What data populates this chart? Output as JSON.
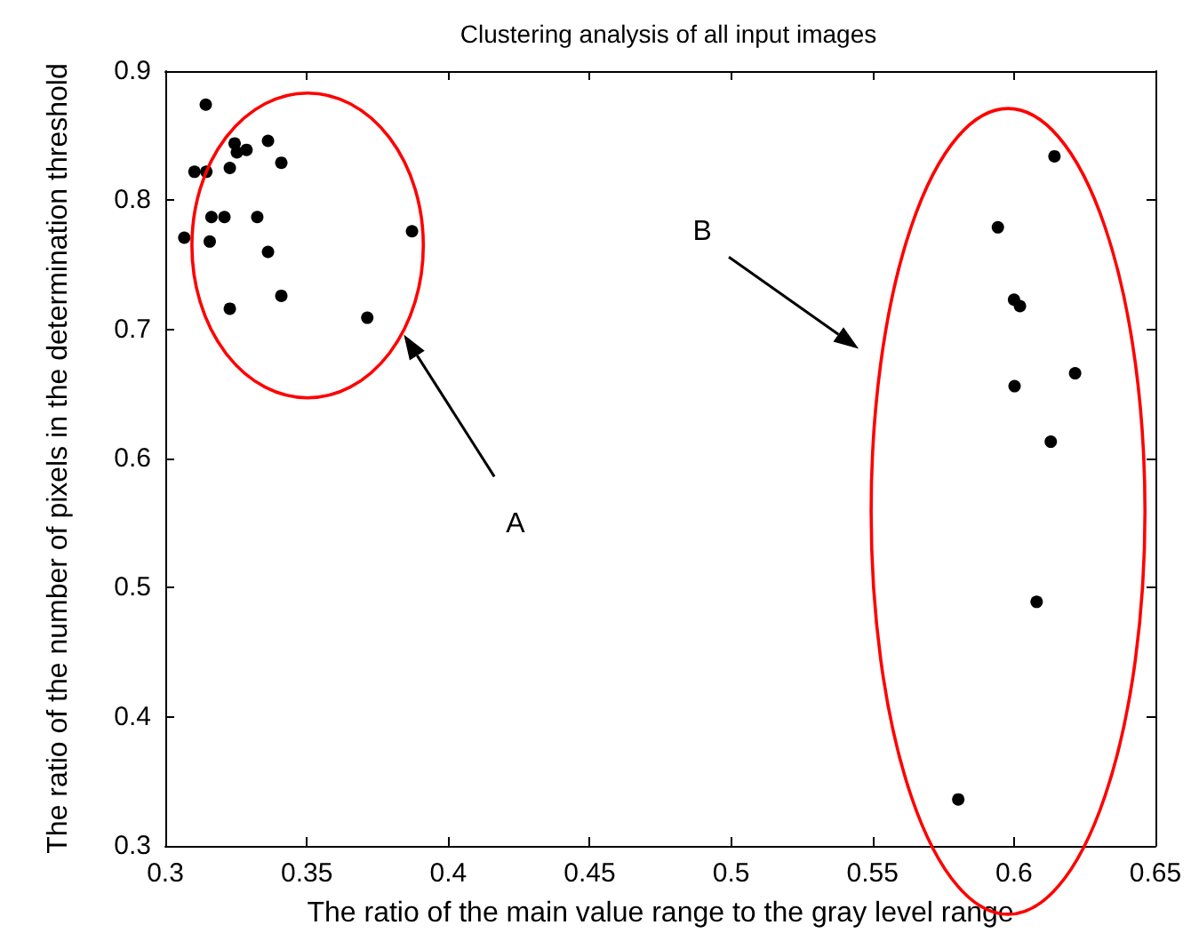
{
  "chart_data": {
    "type": "scatter",
    "title": "Clustering analysis of all input images",
    "xlabel": "The ratio of the main value range to the gray level range",
    "ylabel": "The ratio of the number of pixels in the determination threshold",
    "x": [
      0.3143,
      0.3245,
      0.3253,
      0.3287,
      0.3363,
      0.341,
      0.3103,
      0.3145,
      0.3228,
      0.3163,
      0.3209,
      0.3325,
      0.3067,
      0.3157,
      0.3363,
      0.3872,
      0.341,
      0.3228,
      0.3714,
      0.6143,
      0.5943,
      0.6,
      0.6021,
      0.6216,
      0.6002,
      0.613,
      0.608,
      0.5803
    ],
    "series": [
      {
        "color": "#000000",
        "values": [
          0.874,
          0.844,
          0.837,
          0.839,
          0.846,
          0.829,
          0.822,
          0.822,
          0.825,
          0.787,
          0.787,
          0.787,
          0.771,
          0.768,
          0.76,
          0.776,
          0.726,
          0.716,
          0.709,
          0.834,
          0.779,
          0.723,
          0.718,
          0.666,
          0.656,
          0.613,
          0.489,
          0.336
        ]
      }
    ],
    "xlim": [
      0.3,
      0.65
    ],
    "xticks": [
      0.3,
      0.35,
      0.4,
      0.45,
      0.5,
      0.55,
      0.6,
      0.65
    ],
    "ylim": [
      0.3,
      0.9
    ],
    "yticks": [
      0.3,
      0.4,
      0.5,
      0.6,
      0.7,
      0.8,
      0.9
    ],
    "annotations": [
      "A",
      "B"
    ],
    "grid": false,
    "marker": "circle"
  }
}
